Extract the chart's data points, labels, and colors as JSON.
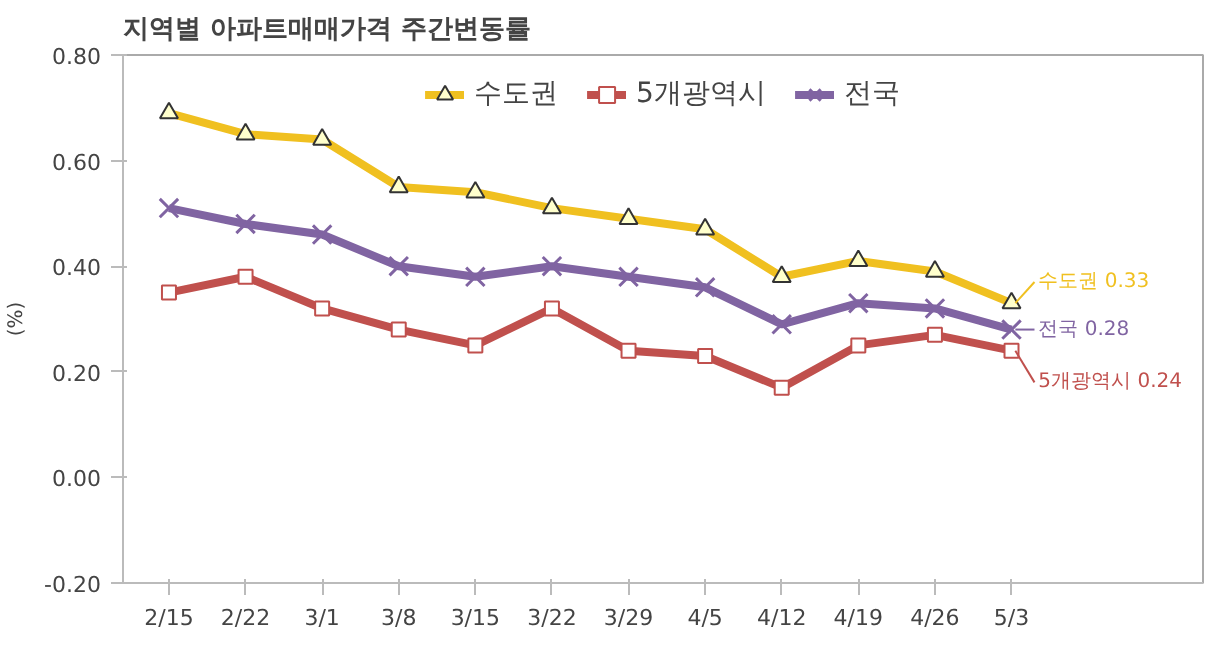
{
  "chart_data": {
    "type": "line",
    "title": "지역별 아파트매매가격 주간변동률",
    "ylabel": "(%)",
    "categories": [
      "2/15",
      "2/22",
      "3/1",
      "3/8",
      "3/15",
      "3/22",
      "3/29",
      "4/5",
      "4/12",
      "4/19",
      "4/26",
      "5/3"
    ],
    "series": [
      {
        "name": "수도권",
        "color": "#f0c020",
        "marker": "triangle",
        "values": [
          0.69,
          0.65,
          0.64,
          0.55,
          0.54,
          0.51,
          0.49,
          0.47,
          0.38,
          0.41,
          0.39,
          0.33
        ]
      },
      {
        "name": "5개광역시",
        "color": "#c0504d",
        "marker": "square",
        "values": [
          0.35,
          0.38,
          0.32,
          0.28,
          0.25,
          0.32,
          0.24,
          0.23,
          0.17,
          0.25,
          0.27,
          0.24
        ]
      },
      {
        "name": "전국",
        "color": "#8064a2",
        "marker": "cross",
        "values": [
          0.51,
          0.48,
          0.46,
          0.4,
          0.38,
          0.4,
          0.38,
          0.36,
          0.29,
          0.33,
          0.32,
          0.28
        ]
      }
    ],
    "ylim": [
      -0.2,
      0.8
    ],
    "yticks": [
      {
        "value": -0.2,
        "label": "-0.20"
      },
      {
        "value": 0,
        "label": "0.00"
      },
      {
        "value": 0.2,
        "label": "0.20"
      },
      {
        "value": 0.4,
        "label": "0.40"
      },
      {
        "value": 0.6,
        "label": "0.60"
      },
      {
        "value": 0.8,
        "label": "0.80"
      }
    ],
    "annotations": [
      {
        "text": "수도권 0.33",
        "x": "5/3",
        "y": 0.33
      },
      {
        "text": "전국 0.28",
        "x": "5/3",
        "y": 0.28
      },
      {
        "text": "5개광역시 0.24",
        "x": "5/3",
        "y": 0.24
      }
    ],
    "legend": "top",
    "grid": false,
    "line_style": "solid"
  }
}
